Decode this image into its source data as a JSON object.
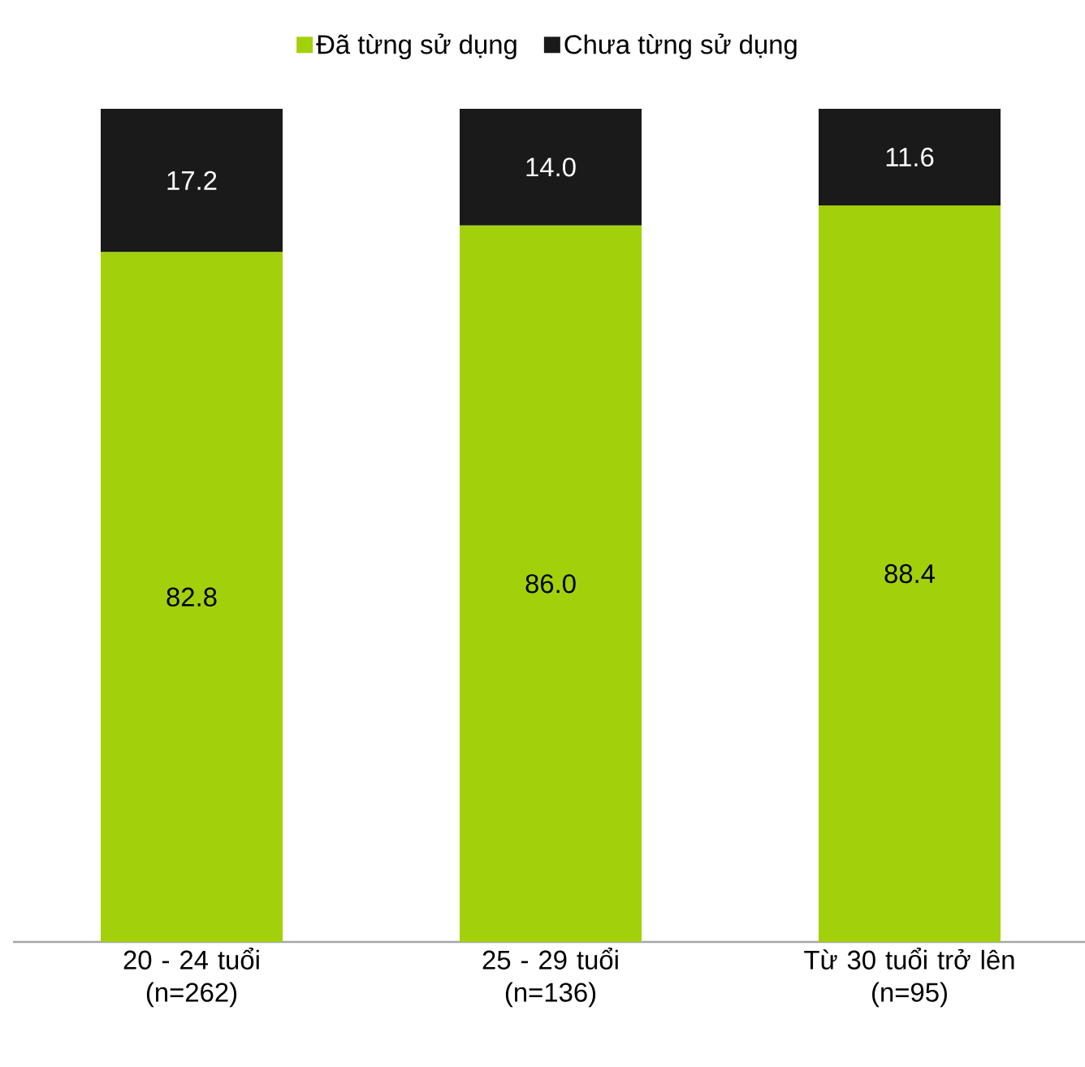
{
  "chart_data": {
    "type": "bar",
    "stacked": true,
    "categories": [
      "20 - 24 tuổi\n(n=262)",
      "25 - 29 tuổi\n(n=136)",
      "Từ 30 tuổi trở lên\n(n=95)"
    ],
    "series": [
      {
        "name": "Đã từng sử dụng",
        "color": "#a2d10c",
        "values": [
          82.8,
          86.0,
          88.4
        ],
        "value_labels": [
          "82.8",
          "86.0",
          "88.4"
        ]
      },
      {
        "name": "Chưa từng sử dụng",
        "color": "#1a1a1a",
        "values": [
          17.2,
          14.0,
          11.6
        ],
        "value_labels": [
          "17.2",
          "14.0",
          "11.6"
        ]
      }
    ],
    "legend": "top"
  }
}
